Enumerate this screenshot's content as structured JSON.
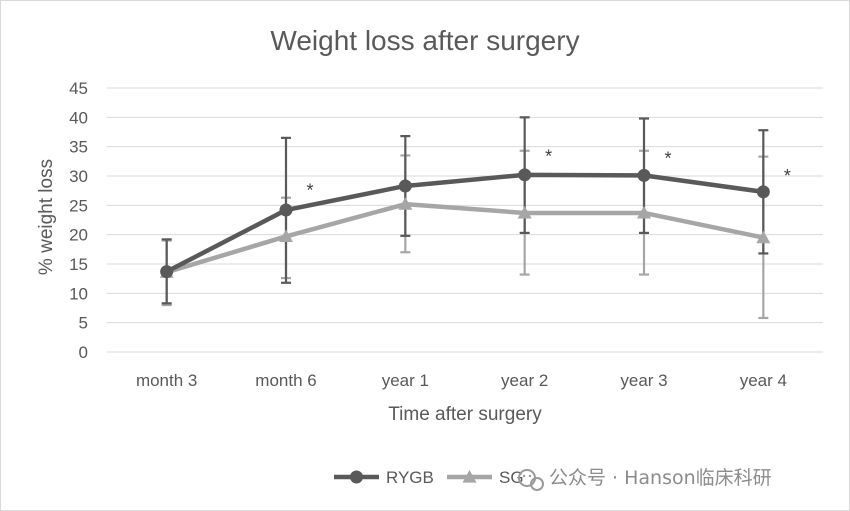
{
  "chart_data": {
    "type": "line",
    "title": "Weight loss after surgery",
    "xlabel": "Time after surgery",
    "ylabel": "% weight loss",
    "ylim": [
      0,
      45
    ],
    "yticks": [
      0,
      5,
      10,
      15,
      20,
      25,
      30,
      35,
      40,
      45
    ],
    "grid": true,
    "categories": [
      "month 3",
      "month 6",
      "year 1",
      "year 2",
      "year 3",
      "year 4"
    ],
    "series": [
      {
        "name": "RYGB",
        "marker": "circle",
        "color": "#595959",
        "values": [
          13.7,
          24.2,
          28.3,
          30.2,
          30.1,
          27.3
        ],
        "error_low": [
          8.3,
          11.8,
          19.8,
          20.3,
          20.3,
          16.8
        ],
        "error_high": [
          19.2,
          36.5,
          36.8,
          40.0,
          39.8,
          37.8
        ]
      },
      {
        "name": "SG",
        "marker": "triangle",
        "color": "#a6a6a6",
        "values": [
          13.6,
          19.7,
          25.2,
          23.7,
          23.7,
          19.5
        ],
        "error_low": [
          8.0,
          12.6,
          17.0,
          13.2,
          13.2,
          5.8
        ],
        "error_high": [
          19.0,
          26.3,
          33.5,
          34.3,
          34.3,
          33.3
        ]
      }
    ],
    "annotations": [
      {
        "category": "month 6",
        "text": "*",
        "value": 27.5
      },
      {
        "category": "year 2",
        "text": "*",
        "value": 33.3
      },
      {
        "category": "year 3",
        "text": "*",
        "value": 33.0
      },
      {
        "category": "year 4",
        "text": "*",
        "value": 30.0
      }
    ],
    "legend_position": "bottom"
  },
  "watermark": {
    "text": "公众号 · Hanson临床科研",
    "icon": "wechat-icon"
  }
}
